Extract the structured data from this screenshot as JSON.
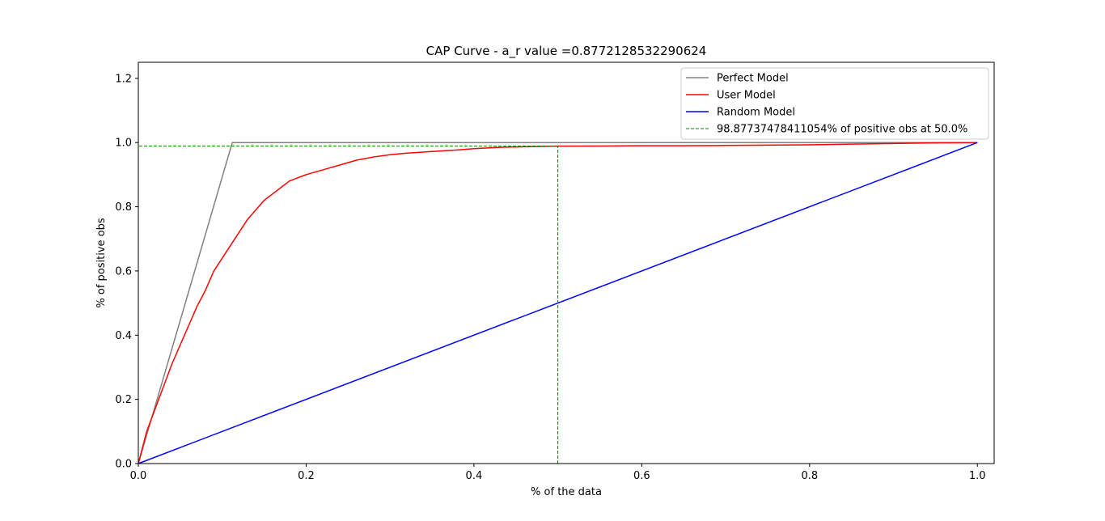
{
  "chart_data": {
    "type": "line",
    "title": "CAP Curve - a_r value =0.8772128532290624",
    "xlabel": "% of the data",
    "ylabel": "% of positive obs",
    "xlim": [
      0.0,
      1.02
    ],
    "ylim": [
      0.0,
      1.25
    ],
    "xticks": [
      0.0,
      0.2,
      0.4,
      0.6,
      0.8,
      1.0
    ],
    "xtick_labels": [
      "0.0",
      "0.2",
      "0.4",
      "0.6",
      "0.8",
      "1.0"
    ],
    "yticks": [
      0.0,
      0.2,
      0.4,
      0.6,
      0.8,
      1.0,
      1.2
    ],
    "ytick_labels": [
      "0.0",
      "0.2",
      "0.4",
      "0.6",
      "0.8",
      "1.0",
      "1.2"
    ],
    "grid": false,
    "legend_position": "top-right",
    "series": [
      {
        "name": "Perfect Model",
        "color": "#808080",
        "style": "solid",
        "x": [
          0.0,
          0.112,
          1.0
        ],
        "y": [
          0.0,
          1.0,
          1.0
        ]
      },
      {
        "name": "User Model",
        "color": "#ff0000",
        "style": "solid",
        "x": [
          0.0,
          0.01,
          0.02,
          0.03,
          0.04,
          0.05,
          0.06,
          0.07,
          0.08,
          0.09,
          0.1,
          0.11,
          0.12,
          0.13,
          0.14,
          0.15,
          0.16,
          0.17,
          0.18,
          0.19,
          0.2,
          0.22,
          0.24,
          0.26,
          0.28,
          0.3,
          0.32,
          0.35,
          0.38,
          0.4,
          0.43,
          0.46,
          0.5,
          0.55,
          0.6,
          0.65,
          0.7,
          0.75,
          0.8,
          0.85,
          0.9,
          0.95,
          1.0
        ],
        "y": [
          0.0,
          0.1,
          0.17,
          0.24,
          0.31,
          0.37,
          0.43,
          0.49,
          0.54,
          0.6,
          0.64,
          0.68,
          0.72,
          0.76,
          0.79,
          0.82,
          0.84,
          0.86,
          0.88,
          0.89,
          0.9,
          0.915,
          0.93,
          0.945,
          0.955,
          0.962,
          0.967,
          0.972,
          0.977,
          0.981,
          0.985,
          0.987,
          0.9888,
          0.989,
          0.99,
          0.99,
          0.991,
          0.992,
          0.993,
          0.995,
          0.997,
          0.999,
          1.0
        ]
      },
      {
        "name": "Random Model",
        "color": "#0000ff",
        "style": "solid",
        "x": [
          0.0,
          1.0
        ],
        "y": [
          0.0,
          1.0
        ]
      },
      {
        "name": "98.87737478411054% of positive obs at 50.0%",
        "color": "#008000",
        "style": "dashed",
        "x": [
          0.5,
          0.5,
          0.0
        ],
        "y": [
          0.0,
          0.9887737478411054,
          0.9887737478411054
        ]
      }
    ]
  }
}
